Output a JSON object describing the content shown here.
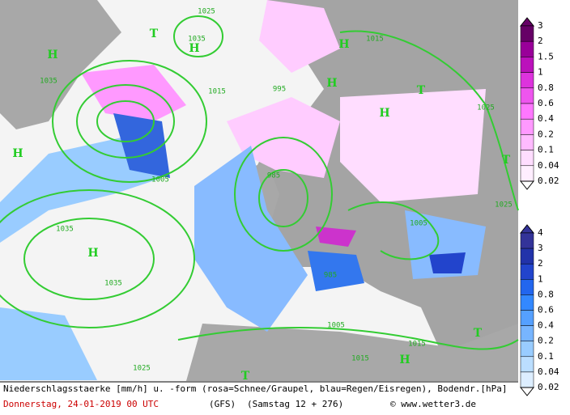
{
  "map": {
    "centers": [
      "H",
      "H",
      "T",
      "H",
      "H",
      "H",
      "T",
      "H",
      "T",
      "H",
      "T",
      "H",
      "T"
    ],
    "pressure_labels": [
      "1025",
      "1035",
      "1015",
      "1035",
      "1015",
      "995",
      "1025",
      "1005",
      "985",
      "1035",
      "1035",
      "1005",
      "1025",
      "1005",
      "1015",
      "1015",
      "1025",
      "985"
    ]
  },
  "legend": {
    "snow_scale": [
      "3",
      "2",
      "1.5",
      "1",
      "0.8",
      "0.6",
      "0.4",
      "0.2",
      "0.1",
      "0.04",
      "0.02"
    ],
    "rain_scale": [
      "4",
      "3",
      "2",
      "1",
      "0.8",
      "0.6",
      "0.4",
      "0.2",
      "0.1",
      "0.04",
      "0.02"
    ]
  },
  "caption": {
    "description": "Niederschlagsstaerke [mm/h] u. -form (rosa=Schnee/Graupel, blau=Regen/Eisregen), Bodendr.[hPa]",
    "date": "Donnerstag, 24-01-2019  00 UTC",
    "model": "(GFS)",
    "run": "(Samstag 12 + 276)",
    "copyright": "© www.wetter3.de"
  }
}
